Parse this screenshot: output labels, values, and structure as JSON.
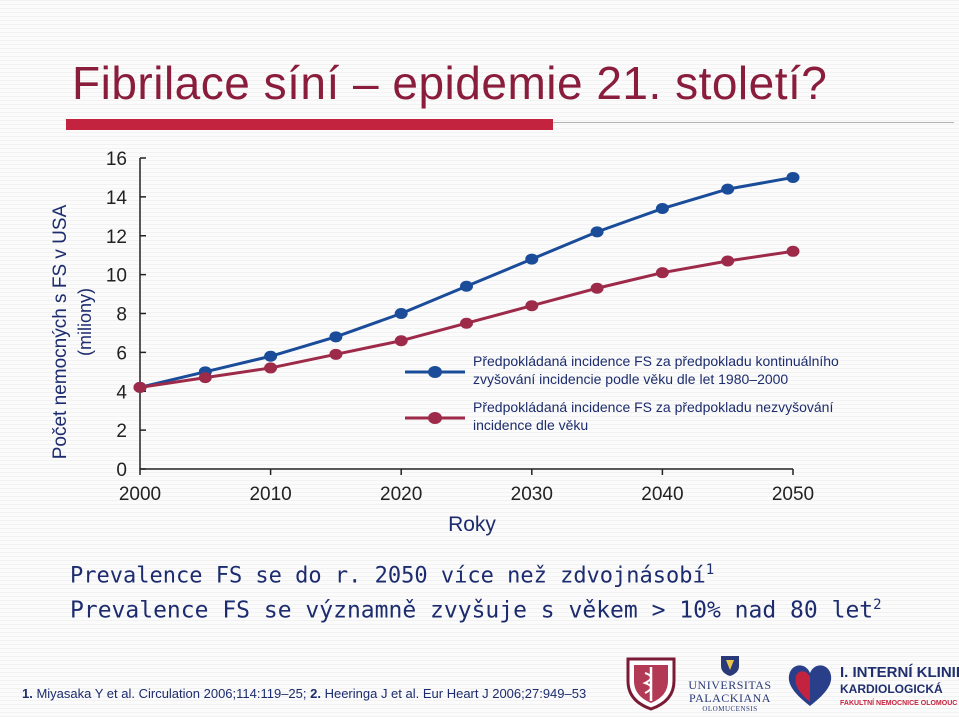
{
  "slide": {
    "title": "Fibrilace síní – epidemie 21. století?"
  },
  "chart_data": {
    "type": "line",
    "ylabel": "Počet nemocných s FS v USA",
    "ylabel_sub": "(miliony)",
    "xlabel": "Roky",
    "xlim": [
      2000,
      2050
    ],
    "ylim": [
      0,
      16
    ],
    "x_ticks": [
      "2000",
      "2010",
      "2020",
      "2030",
      "2040",
      "2050"
    ],
    "y_ticks": [
      "0",
      "2",
      "4",
      "6",
      "8",
      "10",
      "12",
      "14",
      "16"
    ],
    "legend_position": "inside-right",
    "grid": false,
    "x": [
      2000,
      2005,
      2010,
      2015,
      2020,
      2025,
      2030,
      2035,
      2040,
      2045,
      2050
    ],
    "series": [
      {
        "name": "Předpokládaná incidence FS za předpokladu kontinuálního zvyšování incidencie podle věku dle let 1980–2000",
        "name_lines": [
          "Předpokládaná incidence FS za předpokladu kontinuálního",
          "zvyšování incidencie podle věku dle let 1980–2000"
        ],
        "color": "#1a4c9a",
        "values": [
          4.2,
          5.0,
          5.8,
          6.8,
          8.0,
          9.4,
          10.8,
          12.2,
          13.4,
          14.4,
          15.0
        ]
      },
      {
        "name": "Předpokládaná incidence FS za předpokladu nezvyšování incidence dle věku",
        "name_lines": [
          "Předpokládaná incidence FS za předpokladu nezvyšování",
          "incidence dle věku"
        ],
        "color": "#9e2a4a",
        "values": [
          4.2,
          4.7,
          5.2,
          5.9,
          6.6,
          7.5,
          8.4,
          9.3,
          10.1,
          10.7,
          11.2
        ]
      }
    ]
  },
  "bullets": {
    "b1_text": "Prevalence FS se do r. 2050 více než zdvojnásobí",
    "b1_sup": "1",
    "b2_text": "Prevalence FS se významně zvyšuje s věkem > 10% nad 80 let",
    "b2_sup": "2"
  },
  "references": {
    "r1_num": "1.",
    "r1_text": " Miyasaka Y et al. Circulation 2006;114:119–25; ",
    "r2_num": "2.",
    "r2_text": " Heeringa J et al. Eur Heart J 2006;27:949–53"
  },
  "logos": {
    "upol_name_1": "UNIVERSITAS",
    "upol_name_2": "PALACKIANA",
    "upol_sub": "OLOMUCENSIS",
    "klinika_line1": "I. INTERNÍ KLINIKA",
    "klinika_line2": "KARDIOLOGICKÁ",
    "klinika_line3": "FAKULTNÍ NEMOCNICE OLOMOUC"
  },
  "colors": {
    "title": "#8a1c3c",
    "accent": "#c4233f",
    "text": "#1c2c6e"
  }
}
